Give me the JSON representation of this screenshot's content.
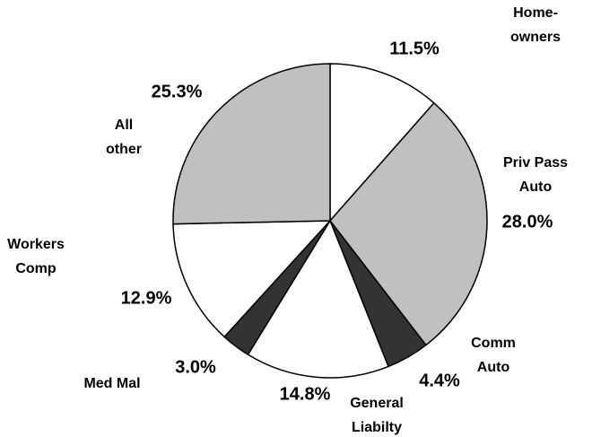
{
  "chart_data": {
    "type": "pie",
    "categories": [
      "Home-\nowners",
      "Priv Pass\nAuto",
      "Comm\nAuto",
      "General\nLiabilty",
      "Med Mal",
      "Workers\nComp",
      "All\nother"
    ],
    "values": [
      11.5,
      28.0,
      4.4,
      14.8,
      3.0,
      12.9,
      25.3
    ],
    "value_labels": [
      "11.5%",
      "28.0%",
      "4.4%",
      "14.8%",
      "3.0%",
      "12.9%",
      "25.3%"
    ],
    "colors": [
      "#ffffff",
      "#c0c0c0",
      "#333333",
      "#ffffff",
      "#333333",
      "#ffffff",
      "#c0c0c0"
    ]
  }
}
